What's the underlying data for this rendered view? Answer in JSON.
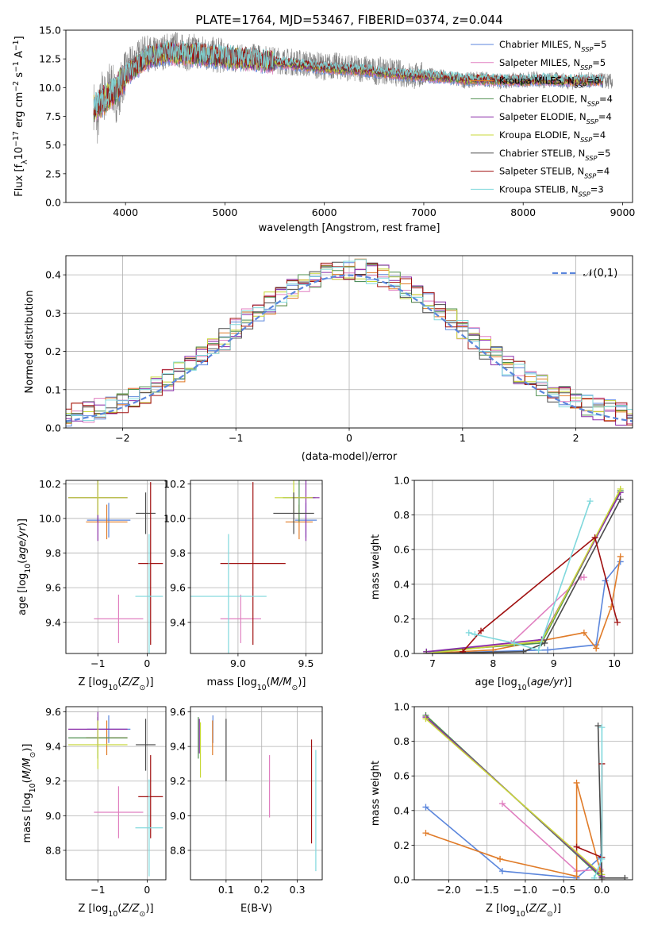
{
  "page_title": "PLATE=1764, MJD=53467, FIBERID=0374, z=0.044",
  "series_styles": [
    {
      "name": "Chabrier MILES",
      "nssp": "5",
      "color": "#5b86dc"
    },
    {
      "name": "Salpeter MILES",
      "nssp": "5",
      "color": "#e07fc0"
    },
    {
      "name": "Kroupa MILES",
      "nssp": "6",
      "color": "#e07b28"
    },
    {
      "name": "Chabrier ELODIE",
      "nssp": "4",
      "color": "#4f8f4f"
    },
    {
      "name": "Salpeter ELODIE",
      "nssp": "4",
      "color": "#8a2ca8"
    },
    {
      "name": "Kroupa ELODIE",
      "nssp": "4",
      "color": "#c8d838"
    },
    {
      "name": "Chabrier STELIB",
      "nssp": "5",
      "color": "#4a4a4a"
    },
    {
      "name": "Salpeter STELIB",
      "nssp": "4",
      "color": "#a01010"
    },
    {
      "name": "Kroupa STELIB",
      "nssp": "3",
      "color": "#7fd8dc"
    }
  ],
  "chart_data": [
    {
      "id": "spectrum",
      "type": "line",
      "title": "PLATE=1764, MJD=53467, FIBERID=0374, z=0.044",
      "xlabel": "wavelength [Angstrom, rest frame]",
      "ylabel": "Flux [f_λ10^-17 erg cm^-2 s^-1 A^-1]",
      "xlim": [
        3400,
        9100
      ],
      "ylim": [
        0,
        15
      ],
      "xticks": [
        4000,
        5000,
        6000,
        7000,
        8000,
        9000
      ],
      "yticks": [
        0.0,
        2.5,
        5.0,
        7.5,
        10.0,
        12.5,
        15.0
      ],
      "legend_position": "right",
      "data_curve": {
        "name": "data",
        "color": "#808080",
        "x": [
          3680,
          3720,
          3760,
          3800,
          3850,
          3900,
          3950,
          4000,
          4100,
          4200,
          4300,
          4400,
          4500,
          4600,
          4700,
          4800,
          4900,
          5000,
          5100,
          5200,
          5300,
          5400,
          5500,
          5600,
          5700,
          5800,
          5900,
          6000,
          6100,
          6200,
          6300,
          6400,
          6500,
          6600,
          6700,
          6800,
          6900,
          7000,
          7100,
          7200,
          7300,
          7400,
          7500,
          7600,
          7700,
          7800,
          7900,
          8000,
          8100,
          8200,
          8300,
          8400,
          8500,
          8600,
          8700,
          8800,
          8900
        ],
        "y": [
          8.5,
          7.0,
          9.5,
          9.0,
          10.5,
          9.0,
          10.0,
          11.5,
          12.5,
          13.0,
          12.8,
          13.2,
          13.4,
          13.0,
          13.2,
          13.0,
          12.8,
          12.8,
          12.5,
          12.6,
          12.7,
          12.5,
          12.4,
          12.3,
          12.2,
          12.1,
          12.0,
          11.8,
          11.9,
          11.8,
          11.6,
          11.7,
          11.4,
          11.5,
          11.3,
          11.2,
          11.0,
          11.1,
          11.0,
          10.9,
          10.8,
          10.6,
          10.7,
          10.8,
          10.6,
          10.5,
          10.7,
          10.6,
          10.8,
          10.6,
          10.7,
          10.6,
          10.5,
          10.7,
          10.6,
          10.6,
          10.5
        ]
      },
      "model_curve": {
        "x": [
          3680,
          3800,
          3900,
          4000,
          4200,
          4400,
          4600,
          4800,
          5000,
          5200,
          5400,
          5600,
          5800,
          6000,
          6200,
          6400,
          6600,
          6800,
          7000,
          7200,
          7400,
          7600,
          7800,
          8000,
          8200,
          8400,
          8600,
          8800
        ],
        "y": [
          8.2,
          9.0,
          9.8,
          11.0,
          12.5,
          13.0,
          12.9,
          12.8,
          12.6,
          12.5,
          12.3,
          12.1,
          11.9,
          11.7,
          11.6,
          11.5,
          11.3,
          11.1,
          11.0,
          10.9,
          10.7,
          10.7,
          10.6,
          10.6,
          10.7,
          10.6,
          10.6,
          10.6
        ]
      }
    },
    {
      "id": "residuals",
      "type": "line",
      "xlabel": "(data-model)/error",
      "ylabel": "Normed distribution",
      "xlim": [
        -2.5,
        2.5
      ],
      "ylim": [
        0,
        0.45
      ],
      "xticks": [
        -2,
        -1,
        0,
        1,
        2
      ],
      "yticks": [
        0.0,
        0.1,
        0.2,
        0.3,
        0.4
      ],
      "reference_label": "𝒩(0,1)",
      "legend_position": "top-right",
      "grid": true
    },
    {
      "id": "age_vs_Z",
      "type": "scatter",
      "xlabel": "Z [log10(Z/Z⊙)]",
      "ylabel": "age  [log10(age/yr)]",
      "xlim": [
        -1.65,
        0.38
      ],
      "ylim": [
        9.22,
        10.22
      ],
      "xticks": [
        -1,
        0
      ],
      "yticks": [
        9.4,
        9.6,
        9.8,
        10.0,
        10.2
      ],
      "grid": true,
      "points": [
        {
          "series": "Chabrier MILES",
          "x": -0.78,
          "xerr": 0.44,
          "y": 9.99,
          "yerr": 0.1
        },
        {
          "series": "Salpeter MILES",
          "x": -0.58,
          "xerr": 0.5,
          "y": 9.42,
          "yerr": 0.14
        },
        {
          "series": "Kroupa MILES",
          "x": -0.82,
          "xerr": 0.42,
          "y": 9.98,
          "yerr": 0.1
        },
        {
          "series": "Chabrier ELODIE",
          "x": -1.0,
          "xerr": 0.6,
          "y": 10.12,
          "yerr": 0.14
        },
        {
          "series": "Salpeter ELODIE",
          "x": -1.0,
          "xerr": 0.6,
          "y": 10.12,
          "yerr": 0.25
        },
        {
          "series": "Kroupa ELODIE",
          "x": -1.0,
          "xerr": 0.6,
          "y": 10.12,
          "yerr": 0.1
        },
        {
          "series": "Chabrier STELIB",
          "x": -0.03,
          "xerr": 0.2,
          "y": 10.03,
          "yerr": 0.12
        },
        {
          "series": "Salpeter STELIB",
          "x": 0.07,
          "xerr": 0.25,
          "y": 9.74,
          "yerr": 0.47
        },
        {
          "series": "Kroupa STELIB",
          "x": 0.04,
          "xerr": 0.28,
          "y": 9.55,
          "yerr": 0.36
        }
      ]
    },
    {
      "id": "age_vs_mass",
      "type": "scatter",
      "xlabel": "mass [log10(M/M⊙)]",
      "ylabel": "",
      "xlim": [
        8.65,
        9.62
      ],
      "ylim": [
        9.22,
        10.22
      ],
      "xticks": [
        9.0,
        9.5
      ],
      "yticks": [
        9.4,
        9.6,
        9.8,
        10.0,
        10.2
      ],
      "grid": true,
      "points": [
        {
          "series": "Chabrier MILES",
          "x": 9.5,
          "xerr": 0.08,
          "y": 9.99,
          "yerr": 0.1
        },
        {
          "series": "Salpeter MILES",
          "x": 9.02,
          "xerr": 0.15,
          "y": 9.42,
          "yerr": 0.14
        },
        {
          "series": "Kroupa MILES",
          "x": 9.45,
          "xerr": 0.1,
          "y": 9.98,
          "yerr": 0.1
        },
        {
          "series": "Chabrier ELODIE",
          "x": 9.45,
          "xerr": 0.12,
          "y": 10.12,
          "yerr": 0.14
        },
        {
          "series": "Salpeter ELODIE",
          "x": 9.5,
          "xerr": 0.1,
          "y": 10.12,
          "yerr": 0.25
        },
        {
          "series": "Kroupa ELODIE",
          "x": 9.41,
          "xerr": 0.14,
          "y": 10.12,
          "yerr": 0.1
        },
        {
          "series": "Chabrier STELIB",
          "x": 9.41,
          "xerr": 0.15,
          "y": 10.03,
          "yerr": 0.12
        },
        {
          "series": "Salpeter STELIB",
          "x": 9.11,
          "xerr": 0.24,
          "y": 9.74,
          "yerr": 0.47
        },
        {
          "series": "Kroupa STELIB",
          "x": 8.93,
          "xerr": 0.28,
          "y": 9.55,
          "yerr": 0.36
        }
      ]
    },
    {
      "id": "weight_vs_age",
      "type": "line",
      "xlabel": "age  [log10(age/yr)]",
      "ylabel": "mass weight",
      "xlim": [
        6.7,
        10.3
      ],
      "ylim": [
        0,
        1
      ],
      "xticks": [
        7,
        8,
        9,
        10
      ],
      "yticks": [
        0.0,
        0.2,
        0.4,
        0.6,
        0.8,
        1.0
      ],
      "grid": true,
      "series": [
        {
          "name": "Chabrier MILES",
          "x": [
            6.9,
            8.9,
            9.7,
            9.85,
            10.1
          ],
          "y": [
            0.0,
            0.02,
            0.05,
            0.42,
            0.53
          ]
        },
        {
          "name": "Salpeter MILES",
          "x": [
            6.9,
            8.3,
            9.45,
            9.5
          ],
          "y": [
            0.0,
            0.06,
            0.44,
            0.44
          ]
        },
        {
          "name": "Kroupa MILES",
          "x": [
            6.9,
            8.0,
            9.5,
            9.7,
            9.95,
            10.1
          ],
          "y": [
            0.0,
            0.02,
            0.12,
            0.03,
            0.27,
            0.56
          ]
        },
        {
          "name": "Chabrier ELODIE",
          "x": [
            6.9,
            8.8,
            10.1
          ],
          "y": [
            0.01,
            0.06,
            0.94
          ]
        },
        {
          "name": "Salpeter ELODIE",
          "x": [
            6.9,
            8.8,
            10.1
          ],
          "y": [
            0.01,
            0.08,
            0.93
          ]
        },
        {
          "name": "Kroupa ELODIE",
          "x": [
            6.9,
            8.8,
            10.1
          ],
          "y": [
            0.0,
            0.07,
            0.95
          ]
        },
        {
          "name": "Chabrier STELIB",
          "x": [
            6.9,
            8.5,
            8.85,
            10.1
          ],
          "y": [
            0.0,
            0.01,
            0.06,
            0.89
          ]
        },
        {
          "name": "Salpeter STELIB",
          "x": [
            7.5,
            7.8,
            9.68,
            10.05
          ],
          "y": [
            0.01,
            0.13,
            0.67,
            0.18
          ]
        },
        {
          "name": "Kroupa STELIB",
          "x": [
            7.6,
            7.7,
            8.35,
            8.75,
            9.6
          ],
          "y": [
            0.12,
            0.11,
            0.06,
            0.02,
            0.88
          ]
        }
      ]
    },
    {
      "id": "mass_vs_Z",
      "type": "scatter",
      "xlabel": "Z [log10(Z/Z⊙)]",
      "ylabel": "mass [log10(M/M⊙)]",
      "xlim": [
        -1.65,
        0.38
      ],
      "ylim": [
        8.63,
        9.63
      ],
      "xticks": [
        -1,
        0
      ],
      "yticks": [
        8.8,
        9.0,
        9.2,
        9.4,
        9.6
      ],
      "grid": true,
      "points": [
        {
          "series": "Chabrier MILES",
          "x": -0.78,
          "xerr": 0.44,
          "y": 9.5,
          "yerr": 0.08
        },
        {
          "series": "Salpeter MILES",
          "x": -0.58,
          "xerr": 0.5,
          "y": 9.02,
          "yerr": 0.15
        },
        {
          "series": "Kroupa MILES",
          "x": -0.82,
          "xerr": 0.42,
          "y": 9.45,
          "yerr": 0.1
        },
        {
          "series": "Chabrier ELODIE",
          "x": -1.0,
          "xerr": 0.6,
          "y": 9.45,
          "yerr": 0.12
        },
        {
          "series": "Salpeter ELODIE",
          "x": -1.0,
          "xerr": 0.6,
          "y": 9.5,
          "yerr": 0.1
        },
        {
          "series": "Kroupa ELODIE",
          "x": -1.0,
          "xerr": 0.6,
          "y": 9.41,
          "yerr": 0.14
        },
        {
          "series": "Chabrier STELIB",
          "x": -0.03,
          "xerr": 0.2,
          "y": 9.41,
          "yerr": 0.15
        },
        {
          "series": "Salpeter STELIB",
          "x": 0.07,
          "xerr": 0.25,
          "y": 9.11,
          "yerr": 0.24
        },
        {
          "series": "Kroupa STELIB",
          "x": 0.04,
          "xerr": 0.28,
          "y": 8.93,
          "yerr": 0.28
        }
      ]
    },
    {
      "id": "mass_vs_ebv",
      "type": "scatter",
      "xlabel": "E(B-V)",
      "ylabel": "",
      "xlim": [
        0.0,
        0.37
      ],
      "ylim": [
        8.63,
        9.63
      ],
      "xticks": [
        0.1,
        0.2,
        0.3
      ],
      "yticks": [
        8.8,
        9.0,
        9.2,
        9.4,
        9.6
      ],
      "grid": true,
      "points": [
        {
          "series": "Chabrier MILES",
          "x": 0.063,
          "xerr": 0.0,
          "y": 9.5,
          "yerr": 0.08
        },
        {
          "series": "Salpeter MILES",
          "x": 0.222,
          "xerr": 0.0,
          "y": 9.17,
          "yerr": 0.18
        },
        {
          "series": "Kroupa MILES",
          "x": 0.062,
          "xerr": 0.0,
          "y": 9.45,
          "yerr": 0.1
        },
        {
          "series": "Chabrier ELODIE",
          "x": 0.022,
          "xerr": 0.0,
          "y": 9.45,
          "yerr": 0.12
        },
        {
          "series": "Salpeter ELODIE",
          "x": 0.025,
          "xerr": 0.0,
          "y": 9.46,
          "yerr": 0.1
        },
        {
          "series": "Kroupa ELODIE",
          "x": 0.028,
          "xerr": 0.0,
          "y": 9.38,
          "yerr": 0.16
        },
        {
          "series": "Chabrier STELIB",
          "x": 0.1,
          "xerr": 0.0,
          "y": 9.38,
          "yerr": 0.18
        },
        {
          "series": "Salpeter STELIB",
          "x": 0.34,
          "xerr": 0.0,
          "y": 9.14,
          "yerr": 0.3
        },
        {
          "series": "Kroupa STELIB",
          "x": 0.352,
          "xerr": 0.0,
          "y": 9.03,
          "yerr": 0.35
        }
      ]
    },
    {
      "id": "weight_vs_Z",
      "type": "line",
      "xlabel": "Z [log10(Z/Z⊙)]",
      "ylabel": "mass weight",
      "xlim": [
        -2.45,
        0.4
      ],
      "ylim": [
        0,
        1
      ],
      "xticks": [
        -2.0,
        -1.5,
        -1.0,
        -0.5,
        0.0
      ],
      "yticks": [
        0.0,
        0.2,
        0.4,
        0.6,
        0.8,
        1.0
      ],
      "grid": true,
      "series": [
        {
          "name": "Chabrier MILES",
          "x": [
            -2.3,
            -1.3,
            -0.33,
            -0.02,
            0.0
          ],
          "y": [
            0.42,
            0.05,
            0.01,
            0.13,
            0.0
          ]
        },
        {
          "name": "Salpeter MILES",
          "x": [
            -1.3,
            -0.33,
            -0.02
          ],
          "y": [
            0.44,
            0.05,
            0.06
          ]
        },
        {
          "name": "Kroupa MILES",
          "x": [
            -2.3,
            -1.33,
            -0.33,
            -0.33,
            -0.02,
            0.0
          ],
          "y": [
            0.27,
            0.12,
            0.02,
            0.56,
            0.05,
            0.0
          ]
        },
        {
          "name": "Chabrier ELODIE",
          "x": [
            -2.3,
            0.0
          ],
          "y": [
            0.95,
            0.01
          ]
        },
        {
          "name": "Salpeter ELODIE",
          "x": [
            -2.3,
            0.0
          ],
          "y": [
            0.94,
            0.02
          ]
        },
        {
          "name": "Kroupa ELODIE",
          "x": [
            -2.3,
            0.0
          ],
          "y": [
            0.93,
            0.03
          ]
        },
        {
          "name": "Chabrier STELIB",
          "x": [
            -0.05,
            0.0,
            0.3
          ],
          "y": [
            0.89,
            0.01,
            0.01
          ]
        },
        {
          "name": "Salpeter STELIB",
          "x": [
            -0.33,
            0.0,
            0.0
          ],
          "y": [
            0.19,
            0.13,
            0.67
          ]
        },
        {
          "name": "Kroupa STELIB",
          "x": [
            0.0,
            0.0,
            -0.1
          ],
          "y": [
            0.88,
            0.12,
            0.01
          ]
        }
      ]
    }
  ]
}
